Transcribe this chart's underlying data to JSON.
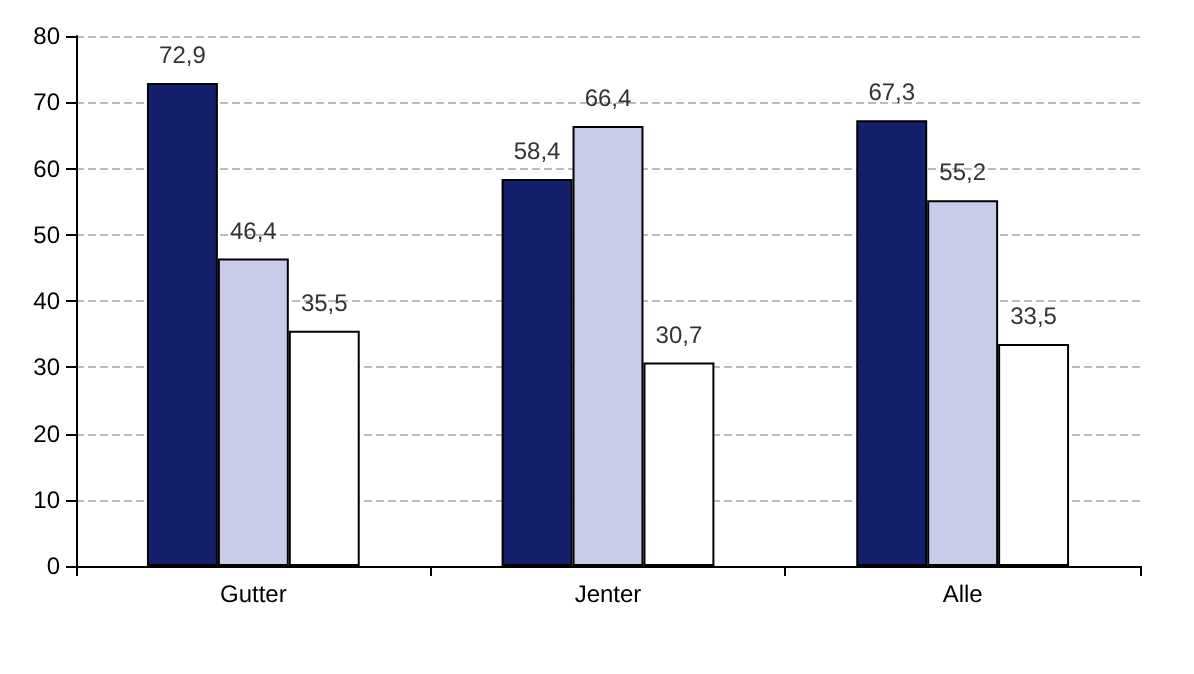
{
  "chart_data": {
    "type": "bar",
    "categories": [
      "Gutter",
      "Jenter",
      "Alle"
    ],
    "series": [
      {
        "color": "#14206b",
        "values": [
          72.9,
          58.4,
          67.3
        ],
        "value_labels": [
          "72,9",
          "58,4",
          "67,3"
        ]
      },
      {
        "color": "#c8cce8",
        "values": [
          46.4,
          66.4,
          55.2
        ],
        "value_labels": [
          "46,4",
          "66,4",
          "55,2"
        ]
      },
      {
        "color": "#ffffff",
        "values": [
          35.5,
          30.7,
          33.5
        ],
        "value_labels": [
          "35,5",
          "30,7",
          "33,5"
        ]
      }
    ],
    "ylim": [
      0,
      80
    ],
    "yticks": [
      0,
      10,
      20,
      30,
      40,
      50,
      60,
      70,
      80
    ],
    "grid": "y"
  }
}
